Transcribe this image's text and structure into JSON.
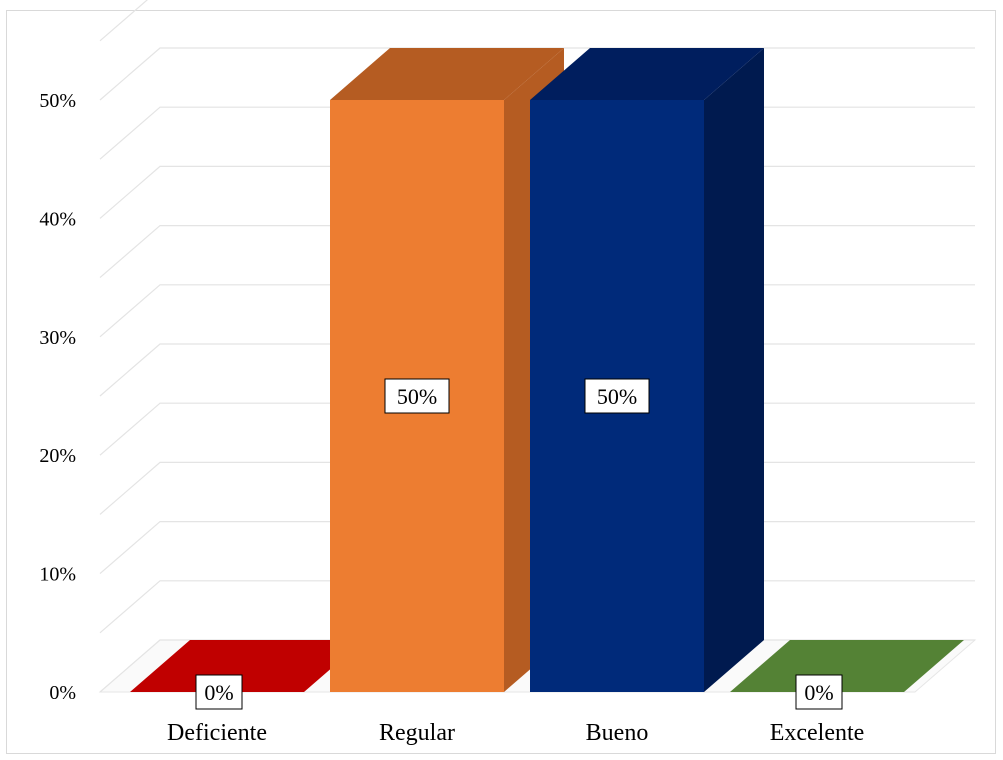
{
  "chart_data": {
    "type": "bar",
    "style": "3d-column",
    "categories": [
      "Deficiente",
      "Regular",
      "Bueno",
      "Excelente"
    ],
    "values": [
      0,
      50,
      50,
      0
    ],
    "data_labels": [
      "0%",
      "50%",
      "50%",
      "0%"
    ],
    "colors": [
      "#c00000",
      "#ed7d31",
      "#002a7a",
      "#548235"
    ],
    "side_colors": [
      "#8b0000",
      "#b55c22",
      "#001a4f",
      "#3b5e23"
    ],
    "top_colors": [
      "#c00000",
      "#b55c22",
      "#001e5e",
      "#548235"
    ],
    "ylim": [
      0,
      50
    ],
    "yticks": [
      0,
      10,
      20,
      30,
      40,
      50
    ],
    "ytick_labels": [
      "0%",
      "10%",
      "20%",
      "30%",
      "40%",
      "50%"
    ],
    "grid": true,
    "legend": "none",
    "title": "",
    "xlabel": "",
    "ylabel": ""
  }
}
